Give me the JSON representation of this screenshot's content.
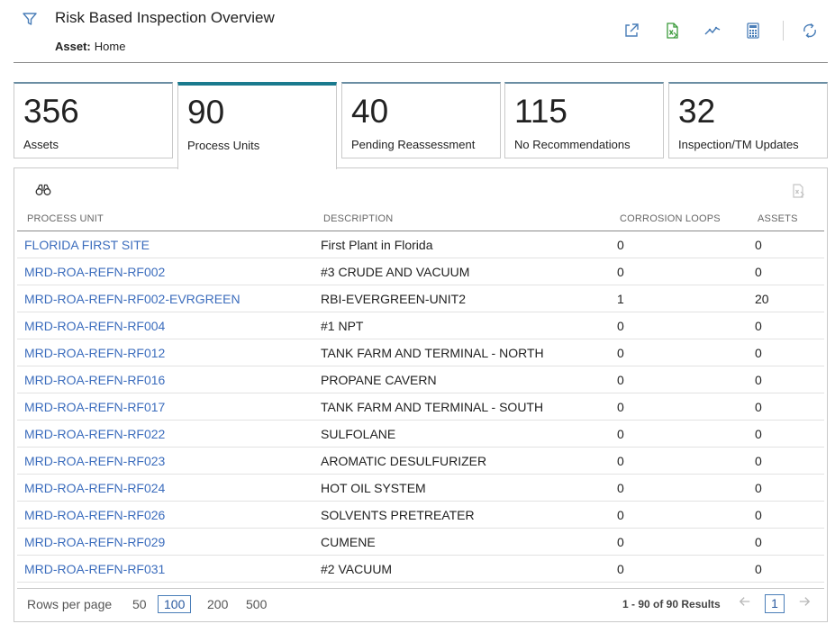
{
  "header": {
    "title": "Risk Based Inspection Overview",
    "asset_label": "Asset:",
    "asset_value": "Home",
    "filter_icon": "filter-icon",
    "toolbar_icons": [
      "open-external-icon",
      "export-excel-icon",
      "trend-chart-icon",
      "calculator-icon",
      "refresh-icon"
    ]
  },
  "kpis": [
    {
      "value": "356",
      "label": "Assets",
      "active": false
    },
    {
      "value": "90",
      "label": "Process Units",
      "active": true
    },
    {
      "value": "40",
      "label": "Pending Reassessment",
      "active": false
    },
    {
      "value": "115",
      "label": "No Recommendations",
      "active": false
    },
    {
      "value": "32",
      "label": "Inspection/TM Updates",
      "active": false
    }
  ],
  "table": {
    "columns": [
      "PROCESS UNIT",
      "DESCRIPTION",
      "CORROSION LOOPS",
      "ASSETS"
    ],
    "rows": [
      [
        "FLORIDA FIRST SITE",
        "First Plant in Florida",
        "0",
        "0"
      ],
      [
        "MRD-ROA-REFN-RF002",
        "#3 CRUDE AND VACUUM",
        "0",
        "0"
      ],
      [
        "MRD-ROA-REFN-RF002-EVRGREEN",
        "RBI-EVERGREEN-UNIT2",
        "1",
        "20"
      ],
      [
        "MRD-ROA-REFN-RF004",
        "#1 NPT",
        "0",
        "0"
      ],
      [
        "MRD-ROA-REFN-RF012",
        "TANK FARM AND TERMINAL - NORTH",
        "0",
        "0"
      ],
      [
        "MRD-ROA-REFN-RF016",
        "PROPANE CAVERN",
        "0",
        "0"
      ],
      [
        "MRD-ROA-REFN-RF017",
        "TANK FARM AND TERMINAL - SOUTH",
        "0",
        "0"
      ],
      [
        "MRD-ROA-REFN-RF022",
        "SULFOLANE",
        "0",
        "0"
      ],
      [
        "MRD-ROA-REFN-RF023",
        "AROMATIC DESULFURIZER",
        "0",
        "0"
      ],
      [
        "MRD-ROA-REFN-RF024",
        "HOT OIL SYSTEM",
        "0",
        "0"
      ],
      [
        "MRD-ROA-REFN-RF026",
        "SOLVENTS PRETREATER",
        "0",
        "0"
      ],
      [
        "MRD-ROA-REFN-RF029",
        "CUMENE",
        "0",
        "0"
      ],
      [
        "MRD-ROA-REFN-RF031",
        "#2 VACUUM",
        "0",
        "0"
      ]
    ]
  },
  "footer": {
    "rows_per_page_label": "Rows per page",
    "rows_per_page_options": [
      "50",
      "100",
      "200",
      "500"
    ],
    "rows_per_page_selected": "100",
    "results_text": "1 - 90 of 90 Results",
    "current_page": "1"
  },
  "colors": {
    "accent_tab": "#1a7a8e",
    "link": "#3c6dbd",
    "icon_green": "#3a9a3a",
    "icon_blue": "#4a7eb8"
  }
}
